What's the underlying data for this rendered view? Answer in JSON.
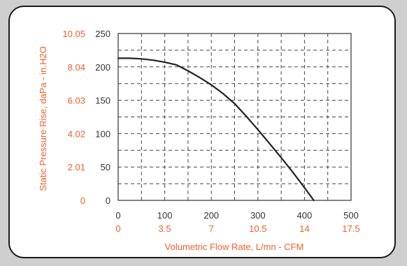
{
  "chart_data": {
    "type": "line",
    "xlabel": "Volumetric Flow Rate, L/mn - CFM",
    "ylabel": "Static Pressure Rise, daPa - in.H2O",
    "xlim": [
      0,
      500
    ],
    "ylim": [
      0,
      250
    ],
    "x_ticks_primary": [
      "0",
      "100",
      "200",
      "300",
      "400",
      "500"
    ],
    "x_ticks_secondary": [
      "0",
      "3.5",
      "7",
      "10.5",
      "14",
      "17.5"
    ],
    "y_ticks_primary": [
      "0",
      "50",
      "100",
      "150",
      "200",
      "250"
    ],
    "y_ticks_secondary": [
      "0",
      "2.01",
      "4.02",
      "6.03",
      "8.04",
      "10.05"
    ],
    "grid": true,
    "series": [
      {
        "x": [
          0,
          25,
          50,
          75,
          100,
          125,
          150,
          175,
          200,
          225,
          250,
          275,
          300,
          325,
          350,
          375,
          400,
          420
        ],
        "y": [
          213,
          213,
          212,
          210,
          207,
          203,
          194,
          184,
          173,
          160,
          145,
          126,
          106,
          85,
          64,
          42,
          19,
          0
        ]
      }
    ],
    "colors": {
      "primary_text": "#333333",
      "secondary_text": "#f0602a",
      "curve": "#222222",
      "grid": "#444444"
    }
  }
}
